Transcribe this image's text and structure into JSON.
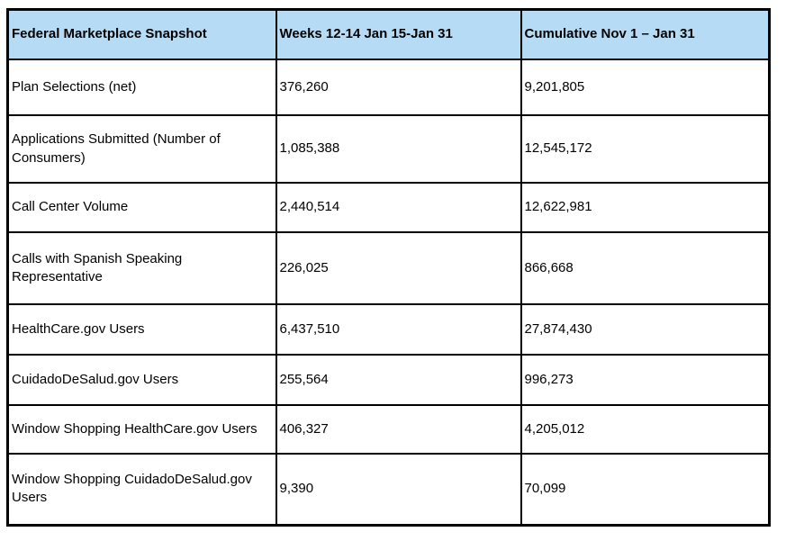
{
  "colors": {
    "header_background": "#b6dcf5",
    "border": "#000000",
    "text": "#000000",
    "page_background": "#ffffff"
  },
  "table": {
    "headers": [
      "Federal Marketplace Snapshot",
      "Weeks 12-14 Jan 15-Jan 31",
      "Cumulative Nov 1 – Jan 31"
    ],
    "rows": [
      {
        "label": "Plan Selections (net)",
        "weeks": "376,260",
        "cumulative": "9,201,805"
      },
      {
        "label": "Applications Submitted (Number of Consumers)",
        "weeks": "1,085,388",
        "cumulative": "12,545,172"
      },
      {
        "label": "Call Center Volume",
        "weeks": "2,440,514",
        "cumulative": "12,622,981"
      },
      {
        "label": "Calls with Spanish Speaking Representative",
        "weeks": "226,025",
        "cumulative": "866,668"
      },
      {
        "label": "HealthCare.gov Users",
        "weeks": "6,437,510",
        "cumulative": "27,874,430"
      },
      {
        "label": "CuidadoDeSalud.gov Users",
        "weeks": "255,564",
        "cumulative": "996,273"
      },
      {
        "label": "Window Shopping HealthCare.gov Users",
        "weeks": "406,327",
        "cumulative": "4,205,012"
      },
      {
        "label": "Window Shopping CuidadoDeSalud.gov Users",
        "weeks": "9,390",
        "cumulative": "70,099"
      }
    ]
  },
  "chart_data": {
    "type": "table",
    "title": "Federal Marketplace Snapshot",
    "columns": [
      "Federal Marketplace Snapshot",
      "Weeks 12-14 Jan 15-Jan 31",
      "Cumulative Nov 1 – Jan 31"
    ],
    "categories": [
      "Plan Selections (net)",
      "Applications Submitted (Number of Consumers)",
      "Call Center Volume",
      "Calls with Spanish Speaking Representative",
      "HealthCare.gov Users",
      "CuidadoDeSalud.gov Users",
      "Window Shopping HealthCare.gov Users",
      "Window Shopping CuidadoDeSalud.gov Users"
    ],
    "series": [
      {
        "name": "Weeks 12-14 Jan 15-Jan 31",
        "values": [
          376260,
          1085388,
          2440514,
          226025,
          6437510,
          255564,
          406327,
          9390
        ]
      },
      {
        "name": "Cumulative Nov 1 – Jan 31",
        "values": [
          9201805,
          12545172,
          12622981,
          866668,
          27874430,
          996273,
          4205012,
          70099
        ]
      }
    ]
  }
}
